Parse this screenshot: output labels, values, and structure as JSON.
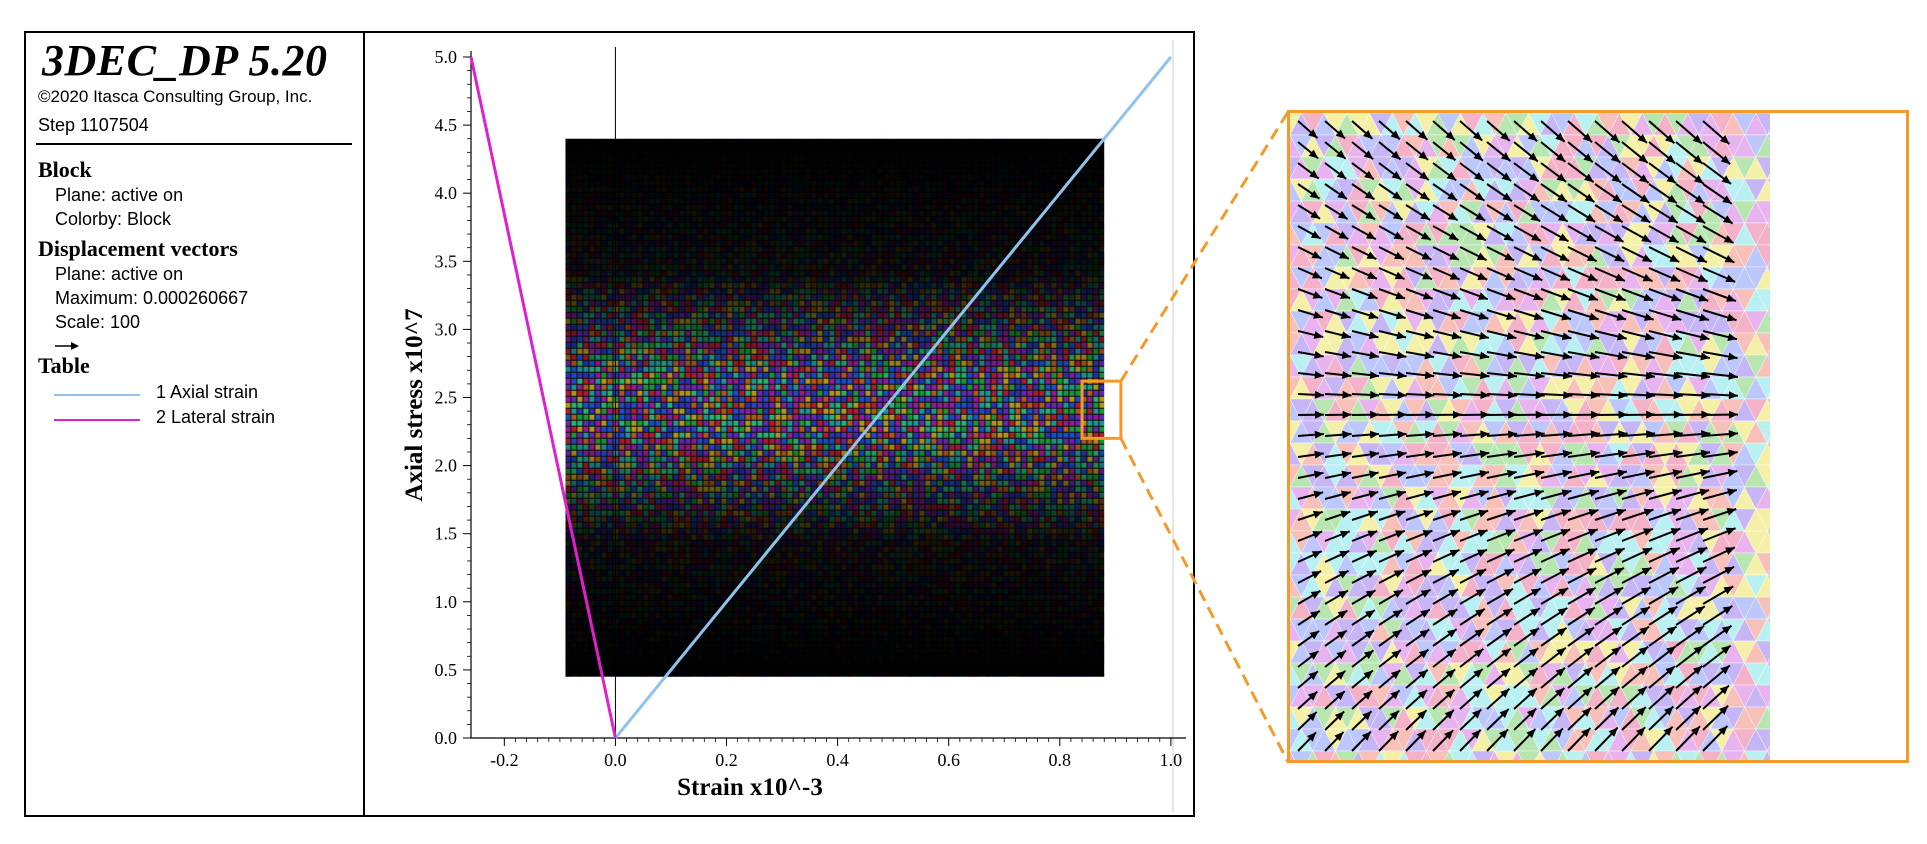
{
  "legend": {
    "title": "3DEC_DP 5.20",
    "copyright": "©2020 Itasca Consulting Group, Inc.",
    "step": "Step 1107504",
    "block": {
      "heading": "Block",
      "plane": "Plane: active on",
      "colorby": "Colorby: Block"
    },
    "displacement": {
      "heading": "Displacement vectors",
      "plane": "Plane: active on",
      "maximum": "Maximum: 0.000260667",
      "scale": "Scale: 100"
    },
    "table": {
      "heading": "Table",
      "items": [
        {
          "label": "1 Axial strain",
          "color": "#8fc3ee"
        },
        {
          "label": "2 Lateral strain",
          "color": "#e020d0"
        }
      ]
    }
  },
  "colors": {
    "frame": "#000000",
    "zoom_border": "#f39a2b",
    "axial_line": "#8fc3ee",
    "lateral_line": "#e020d0"
  },
  "chart_data": {
    "type": "line",
    "xlabel": "Strain x10^-3",
    "ylabel": "Axial stress x10^7",
    "xlim": [
      -0.26,
      1.02
    ],
    "ylim": [
      0,
      5.0
    ],
    "xticks": [
      "-0.2",
      "0.0",
      "0.2",
      "0.4",
      "0.6",
      "0.8",
      "1.0"
    ],
    "xtick_values": [
      -0.2,
      0.0,
      0.2,
      0.4,
      0.6,
      0.8,
      1.0
    ],
    "yticks": [
      "0.0",
      "0.5",
      "1.0",
      "1.5",
      "2.0",
      "2.5",
      "3.0",
      "3.5",
      "4.0",
      "4.5",
      "5.0"
    ],
    "ytick_values": [
      0.0,
      0.5,
      1.0,
      1.5,
      2.0,
      2.5,
      3.0,
      3.5,
      4.0,
      4.5,
      5.0
    ],
    "series": [
      {
        "name": "1 Axial strain",
        "x": [
          0.0,
          1.0
        ],
        "y": [
          0.0,
          5.0
        ]
      },
      {
        "name": "2 Lateral strain",
        "x": [
          0.0,
          -0.26
        ],
        "y": [
          0.0,
          5.0
        ]
      }
    ],
    "model_extent": {
      "x": [
        -0.09,
        0.88
      ],
      "y": [
        0.45,
        4.4
      ]
    },
    "zoom_window": {
      "x": [
        0.84,
        0.91
      ],
      "y": [
        2.2,
        2.62
      ]
    }
  }
}
